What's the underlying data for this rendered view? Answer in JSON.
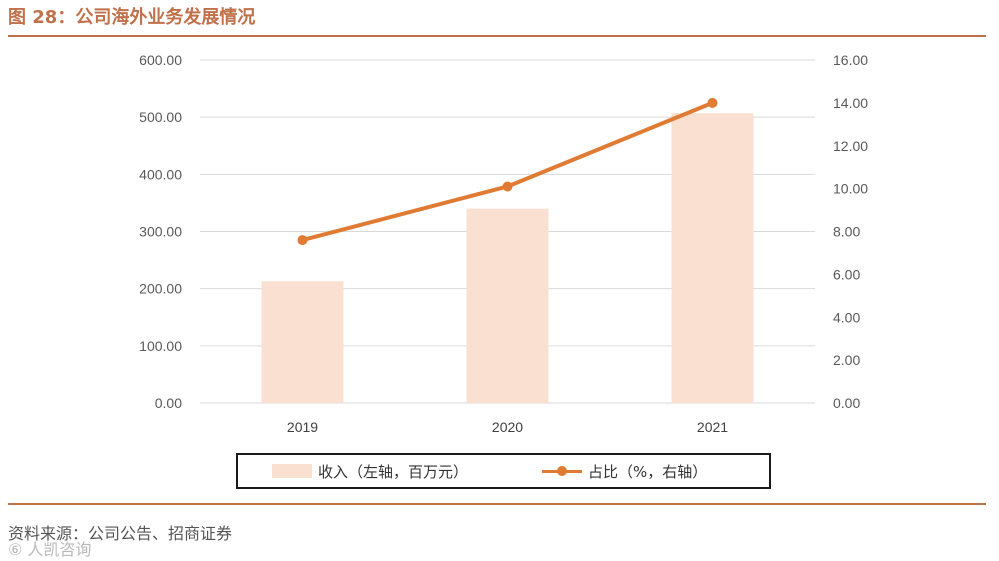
{
  "figure": {
    "title": "图 28：公司海外业务发展情况",
    "source": "资料来源：公司公告、招商证券",
    "watermark": "⑥ 人凯咨询"
  },
  "colors": {
    "accent": "#c0714a",
    "bar": "#fae0d0",
    "line": "#e07b34",
    "grid": "#d9d9d9",
    "tick_text": "#595959"
  },
  "chart_data": {
    "type": "bar",
    "categories": [
      "2019",
      "2020",
      "2021"
    ],
    "series": [
      {
        "name": "收入（左轴，百万元）",
        "type": "bar",
        "axis": "left",
        "values": [
          213,
          340,
          507
        ]
      },
      {
        "name": "占比（%，右轴）",
        "type": "line",
        "axis": "right",
        "values": [
          7.6,
          10.1,
          14.0
        ]
      }
    ],
    "y_left": {
      "range": [
        0,
        600
      ],
      "ticks": [
        "0.00",
        "100.00",
        "200.00",
        "300.00",
        "400.00",
        "500.00",
        "600.00"
      ]
    },
    "y_right": {
      "range": [
        0,
        16
      ],
      "ticks": [
        "0.00",
        "2.00",
        "4.00",
        "6.00",
        "8.00",
        "10.00",
        "12.00",
        "14.00",
        "16.00"
      ]
    },
    "grid": true,
    "legend_position": "bottom"
  }
}
